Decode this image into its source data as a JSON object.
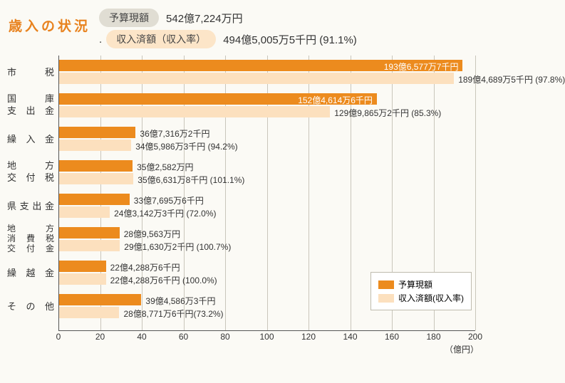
{
  "title": "歳入の状況",
  "summary": {
    "budget": {
      "label": "予算現額",
      "value": "542億7,224万円"
    },
    "received": {
      "label": "収入済額（収入率）",
      "value": "494億5,005万5千円 (91.1%)"
    }
  },
  "chart": {
    "type": "bar",
    "x_max": 200,
    "ticks": [
      0,
      20,
      40,
      60,
      80,
      100,
      120,
      140,
      160,
      180,
      200
    ],
    "unit_label": "（億円）",
    "colors": {
      "budget": "#ec8b1e",
      "received": "#fce0be",
      "grid": "#c9c6bb",
      "bg": "#fbfaf5"
    },
    "legend": {
      "budget": "予算現額",
      "received": "収入済額(収入率)"
    },
    "categories": [
      {
        "lines": [
          "市　　税"
        ],
        "budget_val": 193.66,
        "received_val": 189.47,
        "budget_text": "193億6,577万7千円",
        "received_text": "189億4,689万5千円 (97.8%)",
        "budget_inside": true
      },
      {
        "lines": [
          "国　　庫",
          "支 出 金"
        ],
        "budget_val": 152.46,
        "received_val": 129.99,
        "budget_text": "152億4,614万6千円",
        "received_text": "129億9,865万2千円 (85.3%)",
        "budget_inside": true
      },
      {
        "lines": [
          "繰 入 金"
        ],
        "budget_val": 36.73,
        "received_val": 34.6,
        "budget_text": "36億7,316万2千円",
        "received_text": "34億5,986万3千円 (94.2%)",
        "budget_inside": false
      },
      {
        "lines": [
          "地　　方",
          "交 付 税"
        ],
        "budget_val": 35.26,
        "received_val": 35.66,
        "budget_text": "35億2,582万円",
        "received_text": "35億6,631万8千円 (101.1%)",
        "budget_inside": false
      },
      {
        "lines": [
          "県支出金"
        ],
        "budget_val": 33.77,
        "received_val": 24.31,
        "budget_text": "33億7,695万6千円",
        "received_text": "24億3,142万3千円 (72.0%)",
        "budget_inside": false
      },
      {
        "lines": [
          "地　　方",
          "消 費 税",
          "交 付 金"
        ],
        "budget_val": 28.96,
        "received_val": 29.16,
        "budget_text": "28億9,563万円",
        "received_text": "29億1,630万2千円 (100.7%)",
        "budget_inside": false
      },
      {
        "lines": [
          "繰 越 金"
        ],
        "budget_val": 22.43,
        "received_val": 22.43,
        "budget_text": "22億4,288万6千円",
        "received_text": "22億4,288万6千円 (100.0%)",
        "budget_inside": false
      },
      {
        "lines": [
          "そ の 他"
        ],
        "budget_val": 39.46,
        "received_val": 28.88,
        "budget_text": "39億4,586万3千円",
        "received_text": "28億8,771万6千円(73.2%)",
        "budget_inside": false
      }
    ]
  }
}
